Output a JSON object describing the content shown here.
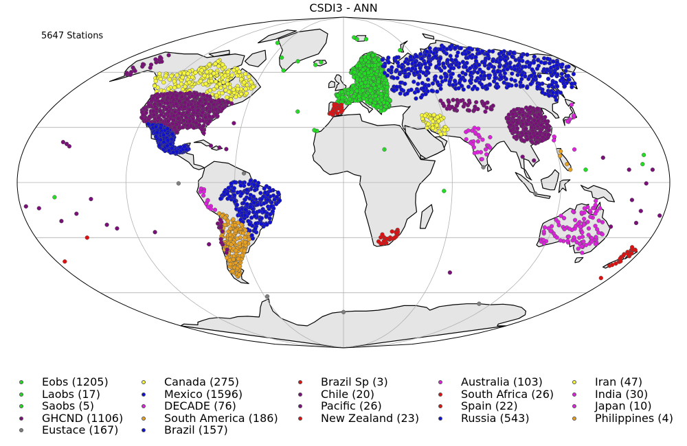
{
  "title": "CSDI3 - ANN",
  "station_count": "5647 Stations",
  "colors": {
    "ocean": "#ffffff",
    "land": "#e5e5e5",
    "coast": "#000000",
    "graticule": "#b0b0b0",
    "green": "#22dd22",
    "purple": "#7a0f7a",
    "gray": "#808080",
    "yellow": "#f6f63a",
    "blue": "#1010d0",
    "orange": "#e8a020",
    "red": "#dd1111",
    "magenta": "#dd22dd"
  },
  "legend": [
    {
      "label": "Eobs (1205)",
      "color": "#22dd22"
    },
    {
      "label": "Laobs (17)",
      "color": "#22dd22"
    },
    {
      "label": "Saobs (5)",
      "color": "#22dd22"
    },
    {
      "label": "GHCND (1106)",
      "color": "#7a0f7a"
    },
    {
      "label": "Eustace (167)",
      "color": "#808080"
    },
    {
      "label": "Canada (275)",
      "color": "#f6f63a"
    },
    {
      "label": "Mexico (1596)",
      "color": "#1010d0"
    },
    {
      "label": "DECADE (76)",
      "color": "#dd22dd"
    },
    {
      "label": "South America (186)",
      "color": "#e8a020"
    },
    {
      "label": "Brazil (157)",
      "color": "#1010d0"
    },
    {
      "label": "Brazil Sp (3)",
      "color": "#dd1111"
    },
    {
      "label": "Chile (20)",
      "color": "#7a0f7a"
    },
    {
      "label": "Pacific (26)",
      "color": "#7a0f7a"
    },
    {
      "label": "New Zealand (23)",
      "color": "#dd1111"
    },
    {
      "label": "Australia (103)",
      "color": "#dd22dd"
    },
    {
      "label": "South Africa (26)",
      "color": "#dd1111"
    },
    {
      "label": "Spain (22)",
      "color": "#dd1111"
    },
    {
      "label": "Russia (543)",
      "color": "#1010d0"
    },
    {
      "label": "Iran (47)",
      "color": "#f6f63a"
    },
    {
      "label": "India (30)",
      "color": "#dd22dd"
    },
    {
      "label": "Japan (10)",
      "color": "#dd22dd"
    },
    {
      "label": "Philippines (4)",
      "color": "#e8a020"
    }
  ],
  "regions": [
    {
      "name": "canada-stations",
      "color": "yellow",
      "n": 240,
      "seed": 11,
      "poly": [
        [
          -140,
          60
        ],
        [
          -125,
          59
        ],
        [
          -110,
          62
        ],
        [
          -100,
          68
        ],
        [
          -90,
          63
        ],
        [
          -80,
          62
        ],
        [
          -68,
          58
        ],
        [
          -60,
          52
        ],
        [
          -66,
          45
        ],
        [
          -76,
          44
        ],
        [
          -84,
          46
        ],
        [
          -95,
          49
        ],
        [
          -110,
          49
        ],
        [
          -123,
          49
        ],
        [
          -133,
          55
        ]
      ]
    },
    {
      "name": "alaska-stations",
      "color": "purple",
      "n": 22,
      "seed": 12,
      "poly": [
        [
          -165,
          63
        ],
        [
          -155,
          70
        ],
        [
          -142,
          70
        ],
        [
          -141,
          60
        ],
        [
          -150,
          59
        ],
        [
          -160,
          58
        ]
      ]
    },
    {
      "name": "usa-stations",
      "color": "purple",
      "n": 650,
      "seed": 13,
      "poly": [
        [
          -124,
          48.5
        ],
        [
          -110,
          49
        ],
        [
          -95,
          49
        ],
        [
          -84,
          46.5
        ],
        [
          -75,
          44.5
        ],
        [
          -70,
          43
        ],
        [
          -74,
          40
        ],
        [
          -76,
          35
        ],
        [
          -81,
          31
        ],
        [
          -80,
          26
        ],
        [
          -83,
          29
        ],
        [
          -89,
          30
        ],
        [
          -95,
          29
        ],
        [
          -97,
          26
        ],
        [
          -101,
          29
        ],
        [
          -106,
          31.5
        ],
        [
          -111,
          31.5
        ],
        [
          -117,
          32.5
        ],
        [
          -121,
          35
        ],
        [
          -124,
          40
        ]
      ]
    },
    {
      "name": "mexico-stations",
      "color": "blue",
      "n": 360,
      "seed": 14,
      "poly": [
        [
          -116,
          32
        ],
        [
          -108,
          31.5
        ],
        [
          -104,
          30
        ],
        [
          -100,
          28
        ],
        [
          -97,
          25
        ],
        [
          -97,
          20
        ],
        [
          -94,
          18.5
        ],
        [
          -88,
          21
        ],
        [
          -87,
          18
        ],
        [
          -91,
          15.5
        ],
        [
          -95,
          15.5
        ],
        [
          -100,
          17
        ],
        [
          -105,
          20
        ],
        [
          -106,
          23
        ],
        [
          -110,
          27
        ],
        [
          -114,
          31
        ]
      ]
    },
    {
      "name": "brazil-stations",
      "color": "blue",
      "n": 240,
      "seed": 15,
      "poly": [
        [
          -62,
          0
        ],
        [
          -50,
          2
        ],
        [
          -40,
          -3
        ],
        [
          -35,
          -6
        ],
        [
          -35,
          -10
        ],
        [
          -39,
          -15
        ],
        [
          -40,
          -21
        ],
        [
          -45,
          -24
        ],
        [
          -50,
          -28
        ],
        [
          -53,
          -31
        ],
        [
          -55,
          -26
        ],
        [
          -58,
          -22
        ],
        [
          -60,
          -18
        ],
        [
          -62,
          -12
        ],
        [
          -66,
          -9
        ],
        [
          -70,
          -10
        ],
        [
          -65,
          -4
        ]
      ]
    },
    {
      "name": "south-america-stations",
      "color": "orange",
      "n": 190,
      "seed": 16,
      "poly": [
        [
          -70,
          -16
        ],
        [
          -63,
          -19
        ],
        [
          -58,
          -23
        ],
        [
          -54,
          -28
        ],
        [
          -57,
          -34
        ],
        [
          -62,
          -40
        ],
        [
          -66,
          -46
        ],
        [
          -70,
          -52
        ],
        [
          -74,
          -50
        ],
        [
          -73,
          -44
        ],
        [
          -72,
          -35
        ],
        [
          -71,
          -28
        ],
        [
          -70,
          -20
        ]
      ]
    },
    {
      "name": "europe-stations",
      "color": "green",
      "n": 650,
      "seed": 17,
      "poly": [
        [
          -9,
          43
        ],
        [
          -1,
          43.5
        ],
        [
          3,
          43
        ],
        [
          8,
          44
        ],
        [
          13,
          45
        ],
        [
          18,
          42
        ],
        [
          20,
          40
        ],
        [
          24,
          38
        ],
        [
          28,
          41
        ],
        [
          30,
          45
        ],
        [
          30,
          52
        ],
        [
          30,
          60
        ],
        [
          30,
          67
        ],
        [
          27,
          70.5
        ],
        [
          20,
          70
        ],
        [
          14,
          67
        ],
        [
          10,
          63
        ],
        [
          5,
          61
        ],
        [
          6,
          58
        ],
        [
          8,
          55
        ],
        [
          2,
          51
        ],
        [
          -5,
          48
        ],
        [
          -4,
          44
        ]
      ]
    },
    {
      "name": "russia-stations",
      "color": "blue",
      "n": 600,
      "seed": 18,
      "poly": [
        [
          30,
          52
        ],
        [
          30,
          68
        ],
        [
          40,
          68
        ],
        [
          60,
          70
        ],
        [
          80,
          73
        ],
        [
          100,
          76
        ],
        [
          120,
          73
        ],
        [
          140,
          72
        ],
        [
          160,
          70
        ],
        [
          178,
          66
        ],
        [
          170,
          60
        ],
        [
          160,
          54
        ],
        [
          143,
          48
        ],
        [
          135,
          44
        ],
        [
          130,
          47
        ],
        [
          120,
          52
        ],
        [
          105,
          51
        ],
        [
          87,
          50
        ],
        [
          70,
          51
        ],
        [
          55,
          48
        ],
        [
          47,
          43
        ],
        [
          40,
          46
        ],
        [
          33,
          50
        ]
      ]
    },
    {
      "name": "china-stations",
      "color": "purple",
      "n": 300,
      "seed": 19,
      "poly": [
        [
          98,
          37
        ],
        [
          105,
          40
        ],
        [
          115,
          41
        ],
        [
          122,
          40
        ],
        [
          122,
          33
        ],
        [
          120,
          28
        ],
        [
          117,
          24
        ],
        [
          110,
          21
        ],
        [
          104,
          22
        ],
        [
          98,
          24
        ],
        [
          97,
          30
        ]
      ]
    },
    {
      "name": "central-asia-stations",
      "color": "purple",
      "n": 45,
      "seed": 20,
      "poly": [
        [
          60,
          45
        ],
        [
          75,
          45
        ],
        [
          90,
          44
        ],
        [
          98,
          42
        ],
        [
          90,
          38
        ],
        [
          75,
          38
        ],
        [
          62,
          40
        ]
      ]
    },
    {
      "name": "iran-stations",
      "color": "yellow",
      "n": 47,
      "seed": 21,
      "poly": [
        [
          46,
          37
        ],
        [
          54,
          37.5
        ],
        [
          60,
          36
        ],
        [
          61,
          31
        ],
        [
          60,
          26
        ],
        [
          56,
          26
        ],
        [
          52,
          28
        ],
        [
          48,
          30
        ]
      ]
    },
    {
      "name": "india-stations",
      "color": "magenta",
      "n": 30,
      "seed": 22,
      "poly": [
        [
          70,
          30
        ],
        [
          78,
          32
        ],
        [
          85,
          26
        ],
        [
          88,
          22
        ],
        [
          82,
          18
        ],
        [
          78,
          10
        ],
        [
          73,
          16
        ],
        [
          70,
          22
        ]
      ]
    },
    {
      "name": "australia-stations",
      "color": "magenta",
      "n": 103,
      "seed": 23,
      "poly": [
        [
          115,
          -22
        ],
        [
          122,
          -18
        ],
        [
          130,
          -13
        ],
        [
          137,
          -13
        ],
        [
          142,
          -11
        ],
        [
          146,
          -18
        ],
        [
          152,
          -26
        ],
        [
          150,
          -36
        ],
        [
          145,
          -38.5
        ],
        [
          138,
          -34
        ],
        [
          130,
          -32
        ],
        [
          116,
          -34
        ],
        [
          114,
          -27
        ]
      ]
    },
    {
      "name": "south-africa-stations",
      "color": "red",
      "n": 26,
      "seed": 24,
      "poly": [
        [
          18,
          -34
        ],
        [
          20,
          -30
        ],
        [
          26,
          -25
        ],
        [
          31,
          -25
        ],
        [
          32,
          -29
        ],
        [
          25,
          -34
        ]
      ]
    },
    {
      "name": "spain-stations",
      "color": "red",
      "n": 22,
      "seed": 25,
      "poly": [
        [
          -9,
          43
        ],
        [
          -2,
          43
        ],
        [
          1,
          41
        ],
        [
          0,
          38
        ],
        [
          -5,
          36.5
        ],
        [
          -9,
          37
        ]
      ]
    },
    {
      "name": "new-zealand-stations",
      "color": "red",
      "n": 23,
      "seed": 26,
      "poly": [
        [
          173,
          -35
        ],
        [
          178,
          -37
        ],
        [
          176,
          -41
        ],
        [
          172,
          -45
        ],
        [
          167,
          -46
        ],
        [
          170,
          -42
        ]
      ]
    },
    {
      "name": "japan-stations",
      "color": "magenta",
      "n": 10,
      "seed": 27,
      "poly": [
        [
          131,
          33
        ],
        [
          136,
          35
        ],
        [
          140,
          36
        ],
        [
          141,
          42
        ],
        [
          143,
          43
        ],
        [
          140,
          38
        ],
        [
          135,
          33
        ]
      ]
    },
    {
      "name": "chile-stations",
      "color": "purple",
      "n": 12,
      "seed": 28,
      "poly": [
        [
          -71,
          -18
        ],
        [
          -69,
          -20
        ],
        [
          -70,
          -40
        ],
        [
          -73,
          -40
        ],
        [
          -72,
          -25
        ]
      ]
    },
    {
      "name": "peru-stations",
      "color": "magenta",
      "n": 14,
      "seed": 29,
      "poly": [
        [
          -80,
          -3
        ],
        [
          -75,
          -2
        ],
        [
          -74,
          -12
        ],
        [
          -70,
          -16
        ],
        [
          -76,
          -14
        ]
      ]
    }
  ],
  "points": [
    {
      "lon": -16,
      "lat": 28,
      "color": "green"
    },
    {
      "lon": -15.4,
      "lat": 28.1,
      "color": "green"
    },
    {
      "lon": -17,
      "lat": 28.5,
      "color": "green"
    },
    {
      "lon": -28,
      "lat": 38.6,
      "color": "green"
    },
    {
      "lon": -22,
      "lat": 64,
      "color": "green"
    },
    {
      "lon": -18,
      "lat": 65.5,
      "color": "green"
    },
    {
      "lon": 15,
      "lat": 78,
      "color": "green"
    },
    {
      "lon": 25,
      "lat": 78,
      "color": "green"
    },
    {
      "lon": 12,
      "lat": 79,
      "color": "green"
    },
    {
      "lon": 52,
      "lat": 72,
      "color": "green"
    },
    {
      "lon": -52,
      "lat": 68,
      "color": "green"
    },
    {
      "lon": -45,
      "lat": 61,
      "color": "green"
    },
    {
      "lon": -37,
      "lat": 66,
      "color": "green"
    },
    {
      "lon": -68,
      "lat": 76,
      "color": "green"
    },
    {
      "lon": 166,
      "lat": 10,
      "color": "green"
    },
    {
      "lon": 134,
      "lat": 7,
      "color": "green"
    },
    {
      "lon": -160,
      "lat": -8,
      "color": "green"
    },
    {
      "lon": 168,
      "lat": 15,
      "color": "green"
    },
    {
      "lon": 55.5,
      "lat": -4.6,
      "color": "green"
    },
    {
      "lon": -157,
      "lat": 21,
      "color": "purple"
    },
    {
      "lon": -155,
      "lat": 19.7,
      "color": "purple"
    },
    {
      "lon": -159.5,
      "lat": 22,
      "color": "purple"
    },
    {
      "lon": -170,
      "lat": -14,
      "color": "purple"
    },
    {
      "lon": -160,
      "lat": -21,
      "color": "purple"
    },
    {
      "lon": -150,
      "lat": -17,
      "color": "purple"
    },
    {
      "lon": -140,
      "lat": -9,
      "color": "purple"
    },
    {
      "lon": -135,
      "lat": -23,
      "color": "purple"
    },
    {
      "lon": -130,
      "lat": -25,
      "color": "purple"
    },
    {
      "lon": -109,
      "lat": -27,
      "color": "purple"
    },
    {
      "lon": -80,
      "lat": -33.6,
      "color": "purple"
    },
    {
      "lon": 144.8,
      "lat": 13.5,
      "color": "purple"
    },
    {
      "lon": 158,
      "lat": 7,
      "color": "purple"
    },
    {
      "lon": 171,
      "lat": 7,
      "color": "purple"
    },
    {
      "lon": 167,
      "lat": -0.5,
      "color": "purple"
    },
    {
      "lon": 178,
      "lat": -18,
      "color": "purple"
    },
    {
      "lon": 166.5,
      "lat": -22,
      "color": "purple"
    },
    {
      "lon": 166.5,
      "lat": -15.5,
      "color": "purple"
    },
    {
      "lon": -177,
      "lat": -13,
      "color": "purple"
    },
    {
      "lon": 70,
      "lat": -49,
      "color": "purple"
    },
    {
      "lon": -75,
      "lat": 20,
      "color": "purple"
    },
    {
      "lon": -66,
      "lat": 18.2,
      "color": "purple"
    },
    {
      "lon": -70,
      "lat": 19,
      "color": "purple"
    },
    {
      "lon": -64.8,
      "lat": 32.3,
      "color": "purple"
    },
    {
      "lon": 160,
      "lat": -9.5,
      "color": "purple"
    },
    {
      "lon": 153,
      "lat": -24,
      "color": "purple"
    },
    {
      "lon": -91,
      "lat": -0.5,
      "color": "gray"
    },
    {
      "lon": -55,
      "lat": 5,
      "color": "gray"
    },
    {
      "lon": 106,
      "lat": -6,
      "color": "gray"
    },
    {
      "lon": -58,
      "lat": -62,
      "color": "gray"
    },
    {
      "lon": 0,
      "lat": -70.5,
      "color": "gray"
    },
    {
      "lon": 110,
      "lat": -66,
      "color": "gray"
    },
    {
      "lon": 77.5,
      "lat": 8.3,
      "color": "gray"
    },
    {
      "lon": 140,
      "lat": -10,
      "color": "magenta"
    },
    {
      "lon": 120,
      "lat": 23,
      "color": "magenta"
    },
    {
      "lon": 130,
      "lat": 18,
      "color": "magenta"
    },
    {
      "lon": -150,
      "lat": -30,
      "color": "red"
    },
    {
      "lon": -175,
      "lat": -43,
      "color": "red"
    },
    {
      "lon": 174,
      "lat": -52,
      "color": "red"
    },
    {
      "lon": 23,
      "lat": 18,
      "color": "green"
    },
    {
      "lon": 121,
      "lat": 14.5,
      "color": "orange"
    },
    {
      "lon": 124,
      "lat": 10,
      "color": "orange"
    },
    {
      "lon": 125.5,
      "lat": 7,
      "color": "orange"
    },
    {
      "lon": 122,
      "lat": 17,
      "color": "orange"
    },
    {
      "lon": 121,
      "lat": 25,
      "color": "magenta"
    },
    {
      "lon": 100,
      "lat": 14,
      "color": "purple"
    },
    {
      "lon": 106,
      "lat": 12,
      "color": "purple"
    }
  ]
}
